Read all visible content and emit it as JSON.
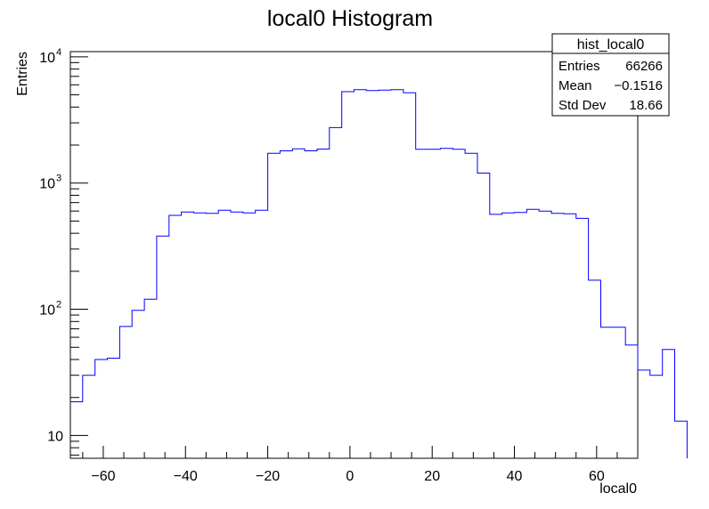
{
  "chart_data": {
    "type": "histogram",
    "title": "local0 Histogram",
    "xlabel": "local0",
    "ylabel": "Entries",
    "xlim": [
      -68,
      70
    ],
    "ylim": [
      6.6,
      11000
    ],
    "yscale": "log",
    "grid": false,
    "line_color": "#0000ff",
    "bin_width": 3,
    "bin_start": -68,
    "x_ticks": [
      -60,
      -40,
      -20,
      0,
      20,
      40,
      60
    ],
    "x_tick_labels": [
      "−60",
      "−40",
      "−20",
      "0",
      "20",
      "40",
      "60"
    ],
    "y_ticks": [
      10,
      100,
      1000,
      10000
    ],
    "y_tick_bases": [
      "10",
      "10",
      "10",
      "10"
    ],
    "y_tick_exps": [
      "",
      "2",
      "3",
      "4"
    ],
    "values": [
      18.5,
      30,
      40,
      41,
      73,
      98,
      120,
      380,
      555,
      590,
      580,
      575,
      610,
      590,
      580,
      610,
      1720,
      1800,
      1870,
      1800,
      1860,
      2750,
      5300,
      5500,
      5400,
      5450,
      5500,
      5200,
      1850,
      1850,
      1880,
      1850,
      1720,
      1200,
      565,
      580,
      585,
      620,
      600,
      575,
      570,
      525,
      170,
      72,
      72,
      52,
      33,
      30,
      48,
      13
    ]
  },
  "stats_box": {
    "title": "hist_local0",
    "rows": [
      {
        "label": "Entries",
        "value": "66266"
      },
      {
        "label": "Mean",
        "value": "−0.1516"
      },
      {
        "label": "Std Dev",
        "value": "18.66"
      }
    ]
  }
}
